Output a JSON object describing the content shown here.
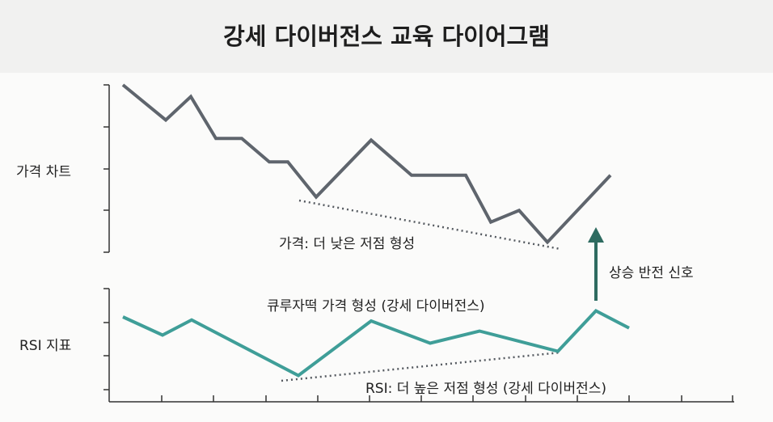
{
  "title": "강세 다이버전스 교육 다이어그램",
  "labels": {
    "price_panel": "가격 차트",
    "rsi_panel": "RSI 지표",
    "price_trend": "가격: 더 낮은 저점 형성",
    "signal": "상승 반전 신호",
    "rsi_caption": "큐루자떡 가격 형성 (강세 다이버전스)",
    "rsi_trend": "RSI: 더 높은 저점 형성 (강세 다이버전스)"
  },
  "colors": {
    "price": "#5f656d",
    "rsi": "#3f9e98",
    "arrow": "#2e6b60",
    "trend": "#555a60"
  },
  "chart_data": [
    {
      "type": "line",
      "series": [
        {
          "values": [
            100,
            79,
            93,
            68,
            68,
            54,
            54,
            33,
            67,
            46,
            46,
            18,
            25,
            6,
            46
          ]
        }
      ],
      "trendline": "declining lows"
    },
    {
      "type": "line",
      "series": [
        {
          "values": [
            72,
            54,
            69,
            14,
            68,
            46,
            58,
            38,
            78,
            61
          ]
        }
      ],
      "trendline": "rising lows"
    }
  ]
}
